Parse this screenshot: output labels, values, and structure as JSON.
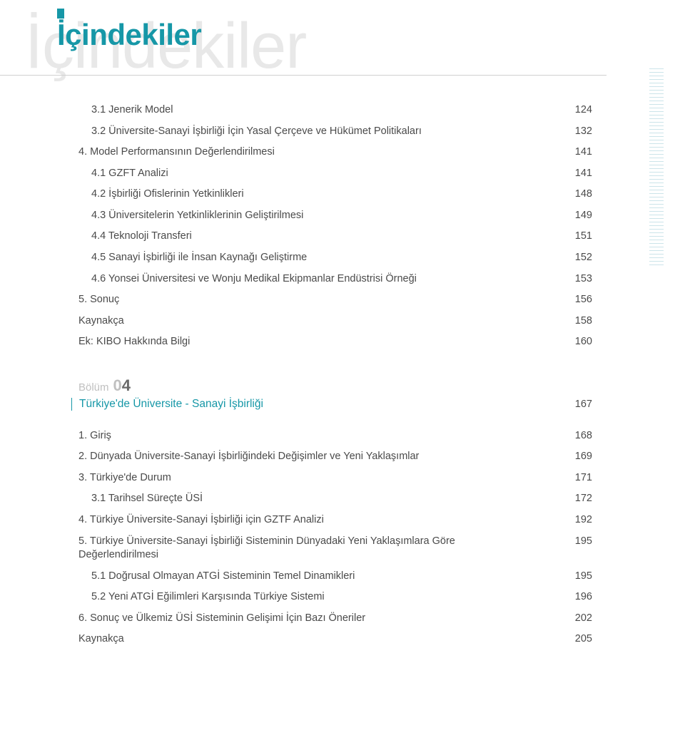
{
  "heading": "İçindekiler",
  "watermark": "İçindekiler",
  "colors": {
    "accent": "#1697a7",
    "text": "#4a4a4a",
    "muted": "#c0c0c0",
    "watermark": "#e8e8e8",
    "rule": "#d0d0d0",
    "background": "#ffffff"
  },
  "toc_top": [
    {
      "indent": 1,
      "label": "3.1 Jenerik Model",
      "page": "124"
    },
    {
      "indent": 1,
      "label": "3.2 Üniversite-Sanayi İşbirliği İçin Yasal Çerçeve ve Hükümet Politikaları",
      "page": "132"
    },
    {
      "indent": 0,
      "label": "4. Model Performansının Değerlendirilmesi",
      "page": "141"
    },
    {
      "indent": 1,
      "label": "4.1 GZFT Analizi",
      "page": "141"
    },
    {
      "indent": 1,
      "label": "4.2 İşbirliği Ofislerinin Yetkinlikleri",
      "page": "148"
    },
    {
      "indent": 1,
      "label": "4.3 Üniversitelerin Yetkinliklerinin Geliştirilmesi",
      "page": "149"
    },
    {
      "indent": 1,
      "label": "4.4 Teknoloji Transferi",
      "page": "151"
    },
    {
      "indent": 1,
      "label": "4.5 Sanayi İşbirliği ile İnsan Kaynağı Geliştirme",
      "page": "152"
    },
    {
      "indent": 1,
      "label": "4.6 Yonsei Üniversitesi ve Wonju Medikal Ekipmanlar Endüstrisi Örneği",
      "page": "153"
    },
    {
      "indent": 0,
      "label": "5. Sonuç",
      "page": "156"
    },
    {
      "indent": 0,
      "label": "Kaynakça",
      "page": "158"
    },
    {
      "indent": 0,
      "label": "Ek: KIBO Hakkında Bilgi",
      "page": "160"
    }
  ],
  "section": {
    "bolum_word": "Bölüm",
    "bolum_lead": "0",
    "bolum_num": "4",
    "title": "Türkiye'de Üniversite - Sanayi İşbirliği",
    "page": "167"
  },
  "toc_bottom": [
    {
      "indent": 0,
      "label": "1. Giriş",
      "page": "168"
    },
    {
      "indent": 0,
      "label": "2. Dünyada Üniversite-Sanayi İşbirliğindeki Değişimler ve Yeni Yaklaşımlar",
      "page": "169"
    },
    {
      "indent": 0,
      "label": "3. Türkiye'de Durum",
      "page": "171"
    },
    {
      "indent": 1,
      "label": "3.1 Tarihsel Süreçte ÜSİ",
      "page": "172"
    },
    {
      "indent": 0,
      "label": "4. Türkiye Üniversite-Sanayi İşbirliği için GZTF Analizi",
      "page": "192"
    },
    {
      "indent": 0,
      "label": "5. Türkiye Üniversite-Sanayi İşbirliği Sisteminin Dünyadaki Yeni Yaklaşımlara Göre Değerlendirilmesi",
      "page": "195",
      "multi": true
    },
    {
      "indent": 1,
      "label": "5.1 Doğrusal Olmayan ATGİ Sisteminin Temel Dinamikleri",
      "page": "195"
    },
    {
      "indent": 1,
      "label": "5.2 Yeni ATGİ Eğilimleri Karşısında Türkiye Sistemi",
      "page": "196"
    },
    {
      "indent": 0,
      "label": "6. Sonuç ve Ülkemiz ÜSİ Sisteminin Gelişimi İçin Bazı Öneriler",
      "page": "202"
    },
    {
      "indent": 0,
      "label": "Kaynakça",
      "page": "205"
    }
  ]
}
